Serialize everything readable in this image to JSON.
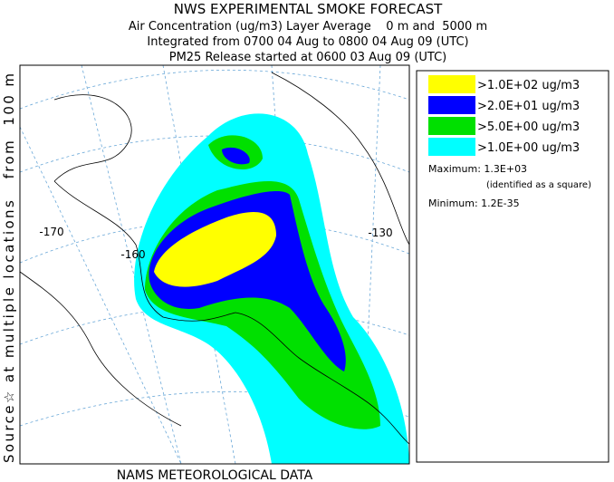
{
  "header": {
    "title": "NWS EXPERIMENTAL SMOKE FORECAST",
    "lines": [
      "Air Concentration (ug/m3) Layer Average    0 m and  5000 m",
      "Integrated from 0700 04 Aug to 0800 04 Aug 09 (UTC)",
      "PM25 Release started at 0600 03 Aug 09 (UTC)"
    ]
  },
  "side_label": "Source☆ at multiple locations   from  100 m",
  "map": {
    "longitude_labels": [
      "-170",
      "-160",
      "-130"
    ]
  },
  "legend": {
    "entries": [
      {
        "label": ">1.0E+02 ug/m3",
        "color": "#ffff00"
      },
      {
        "label": ">2.0E+01 ug/m3",
        "color": "#0000ff"
      },
      {
        "label": ">5.0E+00 ug/m3",
        "color": "#00e000"
      },
      {
        "label": ">1.0E+00 ug/m3",
        "color": "#00ffff"
      }
    ],
    "maximum": "Maximum: 1.3E+03",
    "maximum_note": "(identified as a square)",
    "minimum": "Minimum: 1.2E-35"
  },
  "footer": "NAMS METEOROLOGICAL DATA"
}
